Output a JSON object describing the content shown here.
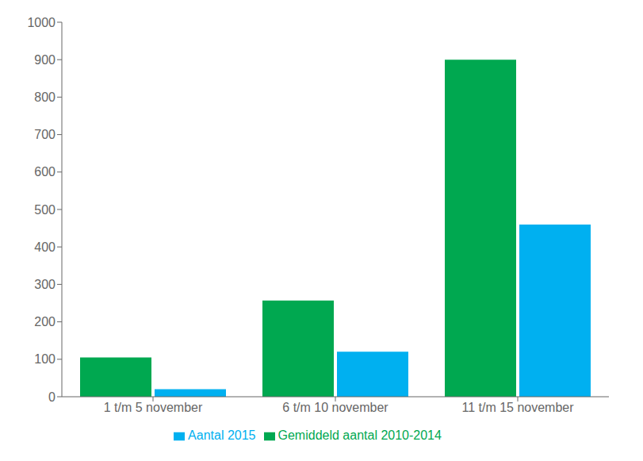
{
  "chart_data": {
    "type": "bar",
    "categories": [
      "1 t/m 5 november",
      "6 t/m 10 november",
      "11 t/m 15 november"
    ],
    "series": [
      {
        "name": "Gemiddeld aantal 2010-2014",
        "color": "#00a850",
        "values": [
          105,
          257,
          900
        ]
      },
      {
        "name": "Aantal 2015",
        "color": "#00b0f0",
        "values": [
          20,
          120,
          460
        ]
      }
    ],
    "ylim": [
      0,
      1000
    ],
    "yticks": [
      0,
      100,
      200,
      300,
      400,
      500,
      600,
      700,
      800,
      900,
      1000
    ],
    "grid": false,
    "legend": "bottom"
  }
}
